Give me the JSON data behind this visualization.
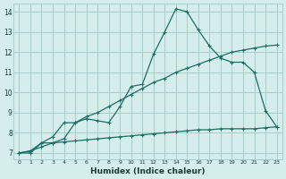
{
  "xlabel": "Humidex (Indice chaleur)",
  "bg_color": "#d6eeeb",
  "grid_color": "#a8ccc8",
  "line_color": "#1a6e64",
  "xlim": [
    -0.5,
    23.5
  ],
  "ylim": [
    6.7,
    14.4
  ],
  "xticks": [
    0,
    1,
    2,
    3,
    4,
    5,
    6,
    7,
    8,
    9,
    10,
    11,
    12,
    13,
    14,
    15,
    16,
    17,
    18,
    19,
    20,
    21,
    22,
    23
  ],
  "yticks": [
    7,
    8,
    9,
    10,
    11,
    12,
    13,
    14
  ],
  "line1_x": [
    0,
    1,
    2,
    3,
    4,
    5,
    6,
    7,
    8,
    9,
    10,
    11,
    12,
    13,
    14,
    15,
    16,
    17,
    18,
    19,
    20,
    21,
    22,
    23
  ],
  "line1_y": [
    7.0,
    7.1,
    7.3,
    7.5,
    7.7,
    8.5,
    8.7,
    8.6,
    8.5,
    9.3,
    10.3,
    10.4,
    11.9,
    13.0,
    14.15,
    14.0,
    13.1,
    12.3,
    11.7,
    11.5,
    11.5,
    11.0,
    9.1,
    8.3
  ],
  "line2_x": [
    0,
    1,
    2,
    3,
    4,
    5,
    6,
    7,
    8,
    9,
    10,
    11,
    12,
    13,
    14,
    15,
    16,
    17,
    18,
    19,
    20,
    21,
    22,
    23
  ],
  "line2_y": [
    7.0,
    7.1,
    7.5,
    7.8,
    8.5,
    8.5,
    8.8,
    9.0,
    9.3,
    9.6,
    9.9,
    10.2,
    10.5,
    10.7,
    11.0,
    11.2,
    11.4,
    11.6,
    11.8,
    12.0,
    12.1,
    12.2,
    12.3,
    12.35
  ],
  "line3_x": [
    0,
    1,
    2,
    3,
    4,
    5,
    6,
    7,
    8,
    9,
    10,
    11,
    12,
    13,
    14,
    15,
    16,
    17,
    18,
    19,
    20,
    21,
    22,
    23
  ],
  "line3_y": [
    7.0,
    7.0,
    7.5,
    7.5,
    7.55,
    7.6,
    7.65,
    7.7,
    7.75,
    7.8,
    7.85,
    7.9,
    7.95,
    8.0,
    8.05,
    8.1,
    8.15,
    8.15,
    8.2,
    8.2,
    8.2,
    8.2,
    8.25,
    8.3
  ]
}
